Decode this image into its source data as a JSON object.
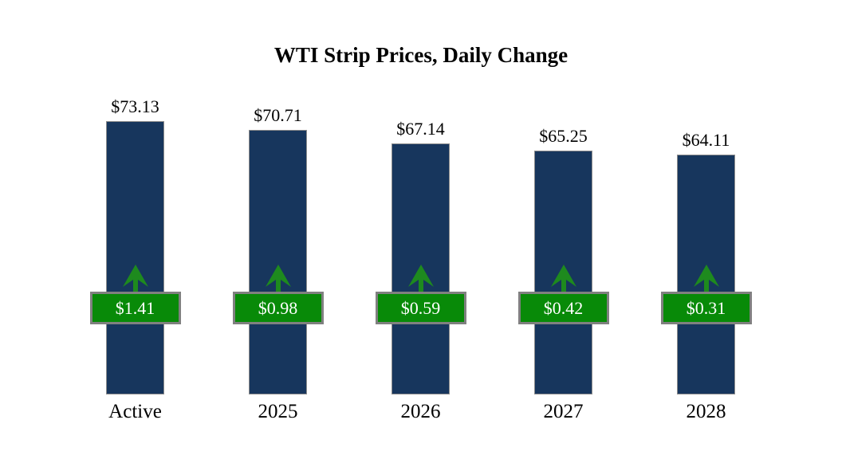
{
  "title": "WTI Strip Prices, Daily Change",
  "colors": {
    "background": "#FFFFFF",
    "bar_fill": "#17365D",
    "bar_border": "#8C8C8C",
    "badge_fill": "#088A08",
    "badge_border": "#808080",
    "badge_text": "#FFFFFF",
    "arrow_green": "#1E8A1E",
    "label_text": "#000000"
  },
  "chart_data": {
    "type": "bar",
    "title": "WTI Strip Prices, Daily Change",
    "categories": [
      "Active",
      "2025",
      "2026",
      "2027",
      "2028"
    ],
    "series": [
      {
        "name": "WTI Strip Price",
        "values": [
          73.13,
          70.71,
          67.14,
          65.25,
          64.11
        ],
        "labels": [
          "$73.13",
          "$70.71",
          "$67.14",
          "$65.25",
          "$64.11"
        ]
      },
      {
        "name": "Daily Change",
        "values": [
          1.41,
          0.98,
          0.59,
          0.42,
          0.31
        ],
        "labels": [
          "$1.41",
          "$0.98",
          "$0.59",
          "$0.42",
          "$0.31"
        ],
        "direction": "up"
      }
    ],
    "ylim": [
      0,
      73.13
    ],
    "xlabel": "",
    "ylabel": "",
    "grid": false,
    "legend_position": "none",
    "axes_hidden": true
  }
}
